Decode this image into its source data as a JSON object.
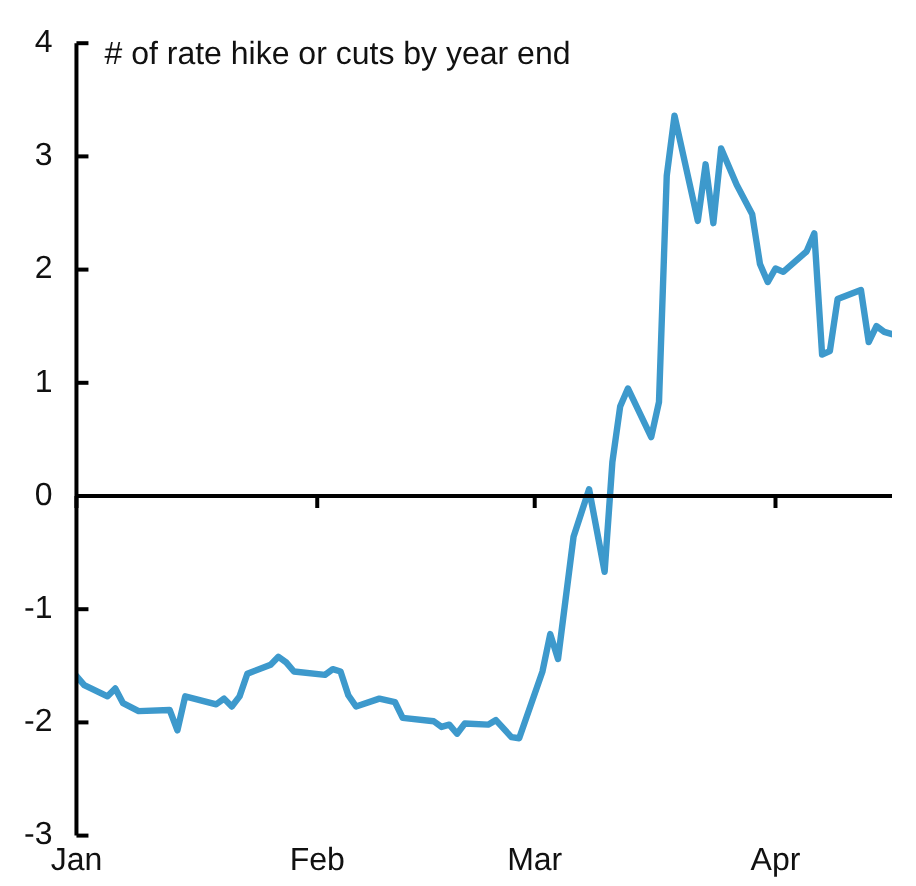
{
  "chart_data": {
    "type": "line",
    "ylabel": "# of rate hike or cuts by year end",
    "x": [
      "--01-01",
      "--01-02",
      "--01-05",
      "--01-06",
      "--01-07",
      "--01-09",
      "--01-13",
      "--01-14",
      "--01-15",
      "--01-19",
      "--01-20",
      "--01-21",
      "--01-22",
      "--01-23",
      "--01-26",
      "--01-27",
      "--01-28",
      "--01-29",
      "--02-02",
      "--02-03",
      "--02-04",
      "--02-05",
      "--02-06",
      "--02-09",
      "--02-11",
      "--02-12",
      "--02-16",
      "--02-17",
      "--02-18",
      "--02-19",
      "--02-20",
      "--02-23",
      "--02-24",
      "--02-26",
      "--02-27",
      "--03-02",
      "--03-03",
      "--03-04",
      "--03-06",
      "--03-08",
      "--03-10",
      "--03-11",
      "--03-12",
      "--03-13",
      "--03-16",
      "--03-17",
      "--03-18",
      "--03-19",
      "--03-22",
      "--03-23",
      "--03-24",
      "--03-25",
      "--03-27",
      "--03-29",
      "--03-30",
      "--03-31",
      "--04-01",
      "--04-02",
      "--04-05",
      "--04-06",
      "--04-07",
      "--04-08",
      "--04-09",
      "--04-12",
      "--04-13",
      "--04-14",
      "--04-15",
      "--04-16"
    ],
    "series": [
      {
        "color": "#3d99cc",
        "values": [
          -1.59,
          -1.67,
          -1.77,
          -1.7,
          -1.83,
          -1.9,
          -1.89,
          -2.07,
          -1.77,
          -1.84,
          -1.79,
          -1.86,
          -1.77,
          -1.57,
          -1.49,
          -1.42,
          -1.47,
          -1.55,
          -1.58,
          -1.53,
          -1.55,
          -1.76,
          -1.86,
          -1.79,
          -1.82,
          -1.96,
          -1.99,
          -2.04,
          -2.02,
          -2.1,
          -2.01,
          -2.02,
          -1.98,
          -2.13,
          -2.14,
          -1.55,
          -1.22,
          -1.44,
          -0.36,
          0.06,
          -0.67,
          0.3,
          0.79,
          0.95,
          0.52,
          0.83,
          2.83,
          3.36,
          2.43,
          2.93,
          2.41,
          3.07,
          2.75,
          2.49,
          2.05,
          1.89,
          2.01,
          1.98,
          2.16,
          2.32,
          1.25,
          1.28,
          1.74,
          1.82,
          1.36,
          1.5,
          1.45,
          1.43
        ]
      }
    ],
    "xlim": [
      "--01-01",
      "--04-16"
    ],
    "xticks": [
      {
        "value": "--01-01",
        "label": "Jan"
      },
      {
        "value": "--02-01",
        "label": "Feb"
      },
      {
        "value": "--03-01",
        "label": "Mar"
      },
      {
        "value": "--04-01",
        "label": "Apr"
      }
    ],
    "ylim": [
      -3,
      4
    ],
    "yticks": [
      -3,
      -2,
      -1,
      0,
      1,
      2,
      3,
      4
    ],
    "ref_lines": [
      {
        "axis": "y",
        "value": 0,
        "color": "#000000"
      }
    ],
    "grid": false,
    "legend": false,
    "marker": "none",
    "line_style": "solid"
  }
}
